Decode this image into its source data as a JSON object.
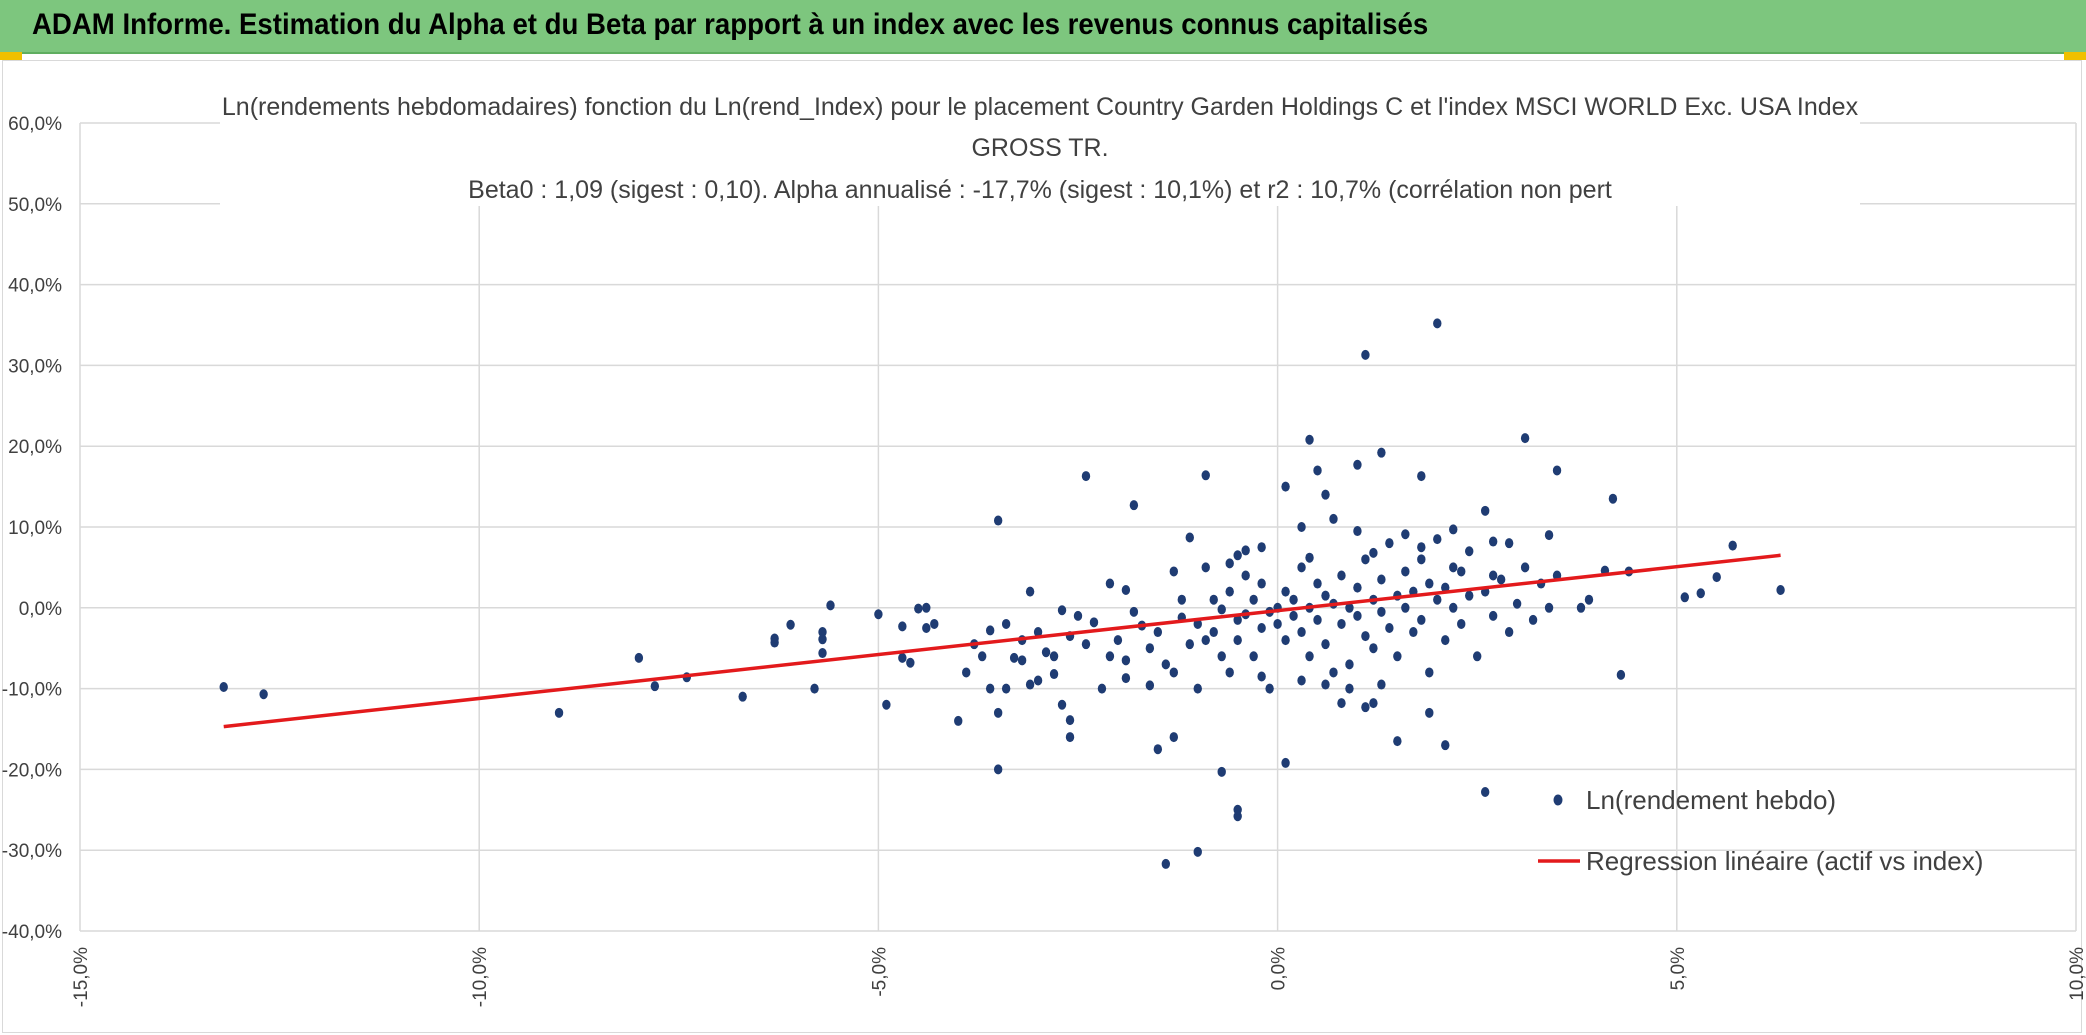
{
  "header": {
    "title": "ADAM Informe. Estimation du Alpha et du Beta par rapport à un index avec les revenus connus capitalisés",
    "background": "#7dc67e"
  },
  "chart_data": {
    "type": "scatter",
    "title_lines": [
      "Ln(rendements hebdomadaires) fonction du Ln(rend_Index) pour le placement Country Garden Holdings C et l'index MSCI WORLD Exc. USA Index",
      "GROSS TR.",
      "Beta0 : 1,09 (sigest : 0,10). Alpha annualisé : -17,7% (sigest : 10,1%) et r2 : 10,7% (corrélation non pert"
    ],
    "xlim": [
      -0.15,
      0.1
    ],
    "ylim": [
      -0.4,
      0.6
    ],
    "x_ticks": [
      "-15,0%",
      "-10,0%",
      "-5,0%",
      "0,0%",
      "5,0%",
      "10,0%"
    ],
    "y_ticks": [
      "60,0%",
      "50,0%",
      "40,0%",
      "30,0%",
      "20,0%",
      "10,0%",
      "0,0%",
      "-10,0%",
      "-20,0%",
      "-30,0%",
      "-40,0%"
    ],
    "grid": true,
    "legend_position": "bottom-right",
    "series": [
      {
        "name": "Ln(rendement hebdo)",
        "kind": "scatter",
        "color": "#1f3c73",
        "points": [
          [
            -0.132,
            -0.098
          ],
          [
            -0.127,
            -0.107
          ],
          [
            -0.09,
            -0.13
          ],
          [
            -0.08,
            -0.062
          ],
          [
            -0.078,
            -0.097
          ],
          [
            -0.074,
            -0.086
          ],
          [
            -0.067,
            -0.11
          ],
          [
            -0.063,
            -0.043
          ],
          [
            -0.063,
            -0.038
          ],
          [
            -0.061,
            -0.021
          ],
          [
            -0.057,
            -0.03
          ],
          [
            -0.057,
            -0.039
          ],
          [
            -0.057,
            -0.056
          ],
          [
            -0.056,
            0.003
          ],
          [
            -0.058,
            -0.1
          ],
          [
            -0.05,
            -0.008
          ],
          [
            -0.049,
            -0.12
          ],
          [
            -0.047,
            -0.023
          ],
          [
            -0.047,
            -0.062
          ],
          [
            -0.046,
            -0.068
          ],
          [
            -0.045,
            -0.001
          ],
          [
            -0.044,
            -0.025
          ],
          [
            -0.044,
            0.0
          ],
          [
            -0.043,
            -0.02
          ],
          [
            -0.04,
            -0.14
          ],
          [
            -0.039,
            -0.08
          ],
          [
            -0.038,
            -0.045
          ],
          [
            -0.037,
            -0.06
          ],
          [
            -0.036,
            -0.028
          ],
          [
            -0.036,
            -0.1
          ],
          [
            -0.035,
            -0.13
          ],
          [
            -0.035,
            0.108
          ],
          [
            -0.035,
            -0.2
          ],
          [
            -0.034,
            -0.1
          ],
          [
            -0.034,
            -0.02
          ],
          [
            -0.033,
            -0.062
          ],
          [
            -0.032,
            -0.04
          ],
          [
            -0.032,
            -0.065
          ],
          [
            -0.031,
            0.02
          ],
          [
            -0.03,
            -0.09
          ],
          [
            -0.03,
            -0.03
          ],
          [
            -0.029,
            -0.055
          ],
          [
            -0.028,
            -0.06
          ],
          [
            -0.027,
            -0.003
          ],
          [
            -0.027,
            -0.12
          ],
          [
            -0.026,
            -0.035
          ],
          [
            -0.025,
            -0.01
          ],
          [
            -0.024,
            -0.045
          ],
          [
            -0.023,
            -0.018
          ],
          [
            -0.022,
            -0.1
          ],
          [
            -0.021,
            0.03
          ],
          [
            -0.02,
            -0.04
          ],
          [
            -0.019,
            0.022
          ],
          [
            -0.019,
            -0.065
          ],
          [
            -0.018,
            -0.005
          ],
          [
            -0.017,
            -0.022
          ],
          [
            -0.016,
            -0.05
          ],
          [
            -0.015,
            -0.03
          ],
          [
            -0.014,
            -0.07
          ],
          [
            -0.013,
            -0.08
          ],
          [
            -0.013,
            -0.16
          ],
          [
            -0.012,
            0.01
          ],
          [
            -0.012,
            -0.012
          ],
          [
            -0.011,
            -0.045
          ],
          [
            -0.01,
            -0.02
          ],
          [
            -0.01,
            -0.1
          ],
          [
            -0.009,
            0.164
          ],
          [
            -0.009,
            -0.04
          ],
          [
            -0.008,
            0.01
          ],
          [
            -0.008,
            -0.03
          ],
          [
            -0.007,
            -0.06
          ],
          [
            -0.007,
            -0.002
          ],
          [
            -0.006,
            -0.08
          ],
          [
            -0.006,
            0.02
          ],
          [
            -0.005,
            -0.015
          ],
          [
            -0.005,
            -0.04
          ],
          [
            -0.004,
            0.04
          ],
          [
            -0.004,
            -0.008
          ],
          [
            -0.003,
            -0.06
          ],
          [
            -0.003,
            0.01
          ],
          [
            -0.002,
            -0.025
          ],
          [
            -0.002,
            0.03
          ],
          [
            -0.001,
            -0.005
          ],
          [
            -0.001,
            -0.1
          ],
          [
            0.0,
            0.0
          ],
          [
            0.0,
            -0.02
          ],
          [
            0.001,
            0.02
          ],
          [
            0.001,
            -0.04
          ],
          [
            0.002,
            0.01
          ],
          [
            0.002,
            -0.01
          ],
          [
            0.003,
            0.05
          ],
          [
            0.003,
            -0.03
          ],
          [
            0.004,
            0.0
          ],
          [
            0.004,
            -0.06
          ],
          [
            0.005,
            0.03
          ],
          [
            0.005,
            -0.015
          ],
          [
            0.006,
            0.015
          ],
          [
            0.006,
            -0.045
          ],
          [
            0.007,
            0.005
          ],
          [
            0.007,
            -0.08
          ],
          [
            0.008,
            0.04
          ],
          [
            0.008,
            -0.02
          ],
          [
            0.009,
            0.0
          ],
          [
            0.009,
            -0.1
          ],
          [
            0.01,
            0.025
          ],
          [
            0.01,
            -0.01
          ],
          [
            0.011,
            0.06
          ],
          [
            0.011,
            -0.035
          ],
          [
            0.012,
            0.01
          ],
          [
            0.012,
            -0.05
          ],
          [
            0.013,
            0.035
          ],
          [
            0.013,
            -0.005
          ],
          [
            0.014,
            0.08
          ],
          [
            0.014,
            -0.025
          ],
          [
            0.015,
            0.015
          ],
          [
            0.015,
            -0.06
          ],
          [
            0.016,
            0.045
          ],
          [
            0.016,
            0.0
          ],
          [
            0.017,
            -0.03
          ],
          [
            0.017,
            0.02
          ],
          [
            0.018,
            0.06
          ],
          [
            0.018,
            -0.015
          ],
          [
            0.019,
            0.03
          ],
          [
            0.019,
            -0.08
          ],
          [
            0.02,
            0.01
          ],
          [
            0.02,
            0.085
          ],
          [
            0.021,
            -0.04
          ],
          [
            0.021,
            0.025
          ],
          [
            0.022,
            0.0
          ],
          [
            0.022,
            0.05
          ],
          [
            0.023,
            -0.02
          ],
          [
            0.024,
            0.015
          ],
          [
            0.024,
            0.07
          ],
          [
            0.025,
            -0.06
          ],
          [
            0.026,
            0.02
          ],
          [
            0.026,
            0.12
          ],
          [
            0.027,
            -0.01
          ],
          [
            0.028,
            0.035
          ],
          [
            0.029,
            -0.03
          ],
          [
            0.029,
            0.08
          ],
          [
            0.03,
            0.005
          ],
          [
            0.031,
            0.21
          ],
          [
            0.031,
            0.05
          ],
          [
            0.032,
            -0.015
          ],
          [
            0.033,
            0.03
          ],
          [
            0.034,
            0.09
          ],
          [
            0.034,
            0.0
          ],
          [
            0.035,
            0.04
          ],
          [
            0.035,
            0.17
          ],
          [
            0.038,
            0.0
          ],
          [
            0.039,
            0.01
          ],
          [
            0.041,
            0.046
          ],
          [
            0.042,
            0.135
          ],
          [
            0.043,
            -0.083
          ],
          [
            0.044,
            0.045
          ],
          [
            0.051,
            0.013
          ],
          [
            0.053,
            0.018
          ],
          [
            0.055,
            0.038
          ],
          [
            0.057,
            0.077
          ],
          [
            0.063,
            0.022
          ],
          [
            0.026,
            -0.228
          ],
          [
            0.021,
            -0.17
          ],
          [
            0.019,
            -0.13
          ],
          [
            0.015,
            -0.165
          ],
          [
            0.012,
            -0.118
          ],
          [
            0.01,
            0.177
          ],
          [
            0.011,
            -0.123
          ],
          [
            0.008,
            -0.118
          ],
          [
            0.007,
            0.11
          ],
          [
            0.005,
            0.17
          ],
          [
            0.004,
            0.208
          ],
          [
            0.001,
            0.15
          ],
          [
            0.001,
            -0.192
          ],
          [
            -0.005,
            -0.258
          ],
          [
            -0.005,
            -0.25
          ],
          [
            -0.007,
            -0.203
          ],
          [
            -0.01,
            -0.302
          ],
          [
            -0.014,
            -0.317
          ],
          [
            -0.015,
            -0.175
          ],
          [
            -0.018,
            0.127
          ],
          [
            -0.024,
            0.163
          ],
          [
            -0.026,
            -0.139
          ],
          [
            -0.026,
            -0.16
          ],
          [
            0.011,
            0.313
          ],
          [
            0.02,
            0.352
          ],
          [
            0.013,
            0.192
          ],
          [
            0.018,
            0.163
          ],
          [
            0.006,
            0.14
          ],
          [
            0.003,
            0.1
          ],
          [
            0.01,
            0.095
          ],
          [
            -0.004,
            0.071
          ],
          [
            -0.011,
            0.087
          ],
          [
            0.016,
            0.091
          ],
          [
            0.022,
            0.097
          ],
          [
            0.027,
            0.082
          ],
          [
            -0.002,
            -0.085
          ],
          [
            0.003,
            -0.09
          ],
          [
            0.006,
            -0.095
          ],
          [
            0.009,
            -0.07
          ],
          [
            0.013,
            -0.095
          ],
          [
            -0.019,
            -0.087
          ],
          [
            -0.016,
            -0.096
          ],
          [
            -0.021,
            -0.06
          ],
          [
            -0.028,
            -0.082
          ],
          [
            -0.031,
            -0.095
          ],
          [
            -0.005,
            0.065
          ],
          [
            -0.002,
            0.075
          ],
          [
            0.004,
            0.062
          ],
          [
            0.012,
            0.068
          ],
          [
            0.018,
            0.075
          ],
          [
            -0.013,
            0.045
          ],
          [
            -0.009,
            0.05
          ],
          [
            -0.006,
            0.055
          ],
          [
            0.023,
            0.045
          ],
          [
            0.027,
            0.04
          ]
        ]
      },
      {
        "name": "Regression linéaire (actif vs index)",
        "kind": "line",
        "color": "#e31a1c",
        "points": [
          [
            -0.132,
            -0.147
          ],
          [
            0.063,
            0.065
          ]
        ]
      }
    ]
  }
}
